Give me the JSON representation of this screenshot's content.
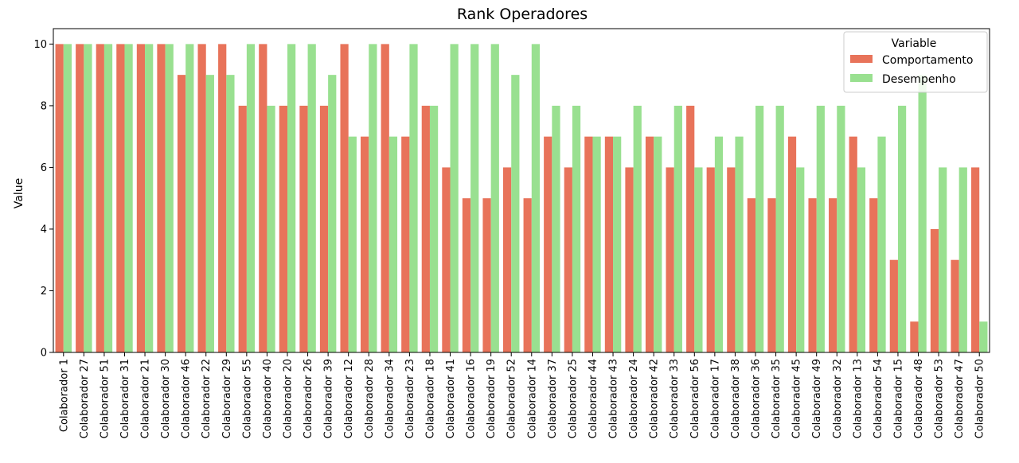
{
  "chart_data": {
    "type": "bar",
    "title": "Rank Operadores",
    "xlabel": "",
    "ylabel": "Value",
    "ylim": [
      0,
      10.5
    ],
    "yticks": [
      0,
      2,
      4,
      6,
      8,
      10
    ],
    "grid": false,
    "legend": {
      "title": "Variable",
      "placement": "top-right"
    },
    "categories": [
      "Colaborador 1",
      "Colaborador 27",
      "Colaborador 51",
      "Colaborador 31",
      "Colaborador 21",
      "Colaborador 30",
      "Colaborador 46",
      "Colaborador 22",
      "Colaborador 29",
      "Colaborador 55",
      "Colaborador 40",
      "Colaborador 20",
      "Colaborador 26",
      "Colaborador 39",
      "Colaborador 12",
      "Colaborador 28",
      "Colaborador 34",
      "Colaborador 23",
      "Colaborador 18",
      "Colaborador 41",
      "Colaborador 16",
      "Colaborador 19",
      "Colaborador 52",
      "Colaborador 14",
      "Colaborador 37",
      "Colaborador 25",
      "Colaborador 44",
      "Colaborador 43",
      "Colaborador 24",
      "Colaborador 42",
      "Colaborador 33",
      "Colaborador 56",
      "Colaborador 17",
      "Colaborador 38",
      "Colaborador 36",
      "Colaborador 35",
      "Colaborador 45",
      "Colaborador 49",
      "Colaborador 32",
      "Colaborador 13",
      "Colaborador 54",
      "Colaborador 15",
      "Colaborador 48",
      "Colaborador 53",
      "Colaborador 47",
      "Colaborador 50"
    ],
    "series": [
      {
        "name": "Comportamento",
        "color": "#e8735a",
        "values": [
          10,
          10,
          10,
          10,
          10,
          10,
          9,
          10,
          10,
          8,
          10,
          8,
          8,
          8,
          10,
          7,
          10,
          7,
          8,
          6,
          5,
          5,
          6,
          5,
          7,
          6,
          7,
          7,
          6,
          7,
          6,
          8,
          6,
          6,
          5,
          5,
          7,
          5,
          5,
          7,
          5,
          3,
          1,
          4,
          3,
          6
        ]
      },
      {
        "name": "Desempenho",
        "color": "#99e090",
        "values": [
          10,
          10,
          10,
          10,
          10,
          10,
          10,
          9,
          9,
          10,
          8,
          10,
          10,
          9,
          7,
          10,
          7,
          10,
          8,
          10,
          10,
          10,
          9,
          10,
          8,
          8,
          7,
          7,
          8,
          7,
          8,
          6,
          7,
          7,
          8,
          8,
          6,
          8,
          8,
          6,
          7,
          8,
          9,
          6,
          6,
          1
        ]
      }
    ]
  }
}
